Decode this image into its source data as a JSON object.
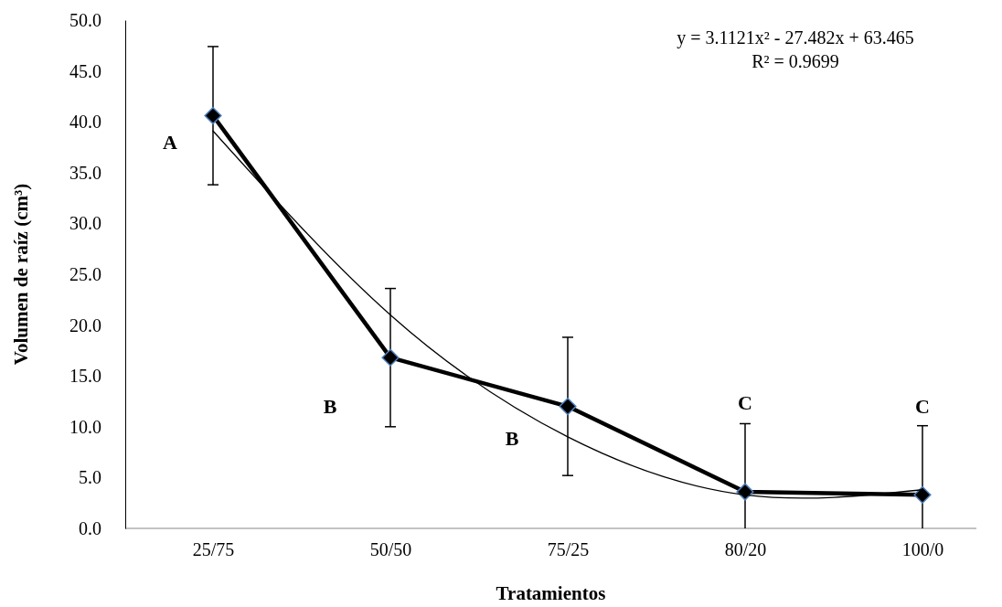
{
  "chart_data": {
    "type": "line",
    "xlabel": "Tratamientos",
    "ylabel": "Volumen de raíz (cm³)",
    "categories": [
      "25/75",
      "50/50",
      "75/25",
      "80/20",
      "100/0"
    ],
    "ylim": [
      0,
      50
    ],
    "yticks": [
      {
        "value": 0,
        "label": "0.0"
      },
      {
        "value": 5,
        "label": "5.0"
      },
      {
        "value": 10,
        "label": "10.0"
      },
      {
        "value": 15,
        "label": "15.0"
      },
      {
        "value": 20,
        "label": "20.0"
      },
      {
        "value": 25,
        "label": "25.0"
      },
      {
        "value": 30,
        "label": "30.0"
      },
      {
        "value": 35,
        "label": "35.0"
      },
      {
        "value": 40,
        "label": "40.0"
      },
      {
        "value": 45,
        "label": "45.0"
      },
      {
        "value": 50,
        "label": "50.0"
      }
    ],
    "grid": false,
    "series": [
      {
        "color": "#000000",
        "values": [
          40.6,
          16.8,
          12.0,
          3.6,
          3.3
        ],
        "errors": [
          6.8,
          6.8,
          6.8,
          [
            0,
            10.3
          ],
          [
            0,
            10.1
          ]
        ],
        "marker": "diamond",
        "line_style": "solid"
      },
      {
        "color": "#000000",
        "values": [
          39.1,
          21.0,
          9.0,
          3.3,
          3.8
        ],
        "marker": "none",
        "line_style": "solid"
      }
    ],
    "annotations": [
      "y = 3.1121x² - 27.482x + 63.465",
      "R² = 0.9699",
      "A",
      "B",
      "B",
      "C",
      "C"
    ]
  }
}
